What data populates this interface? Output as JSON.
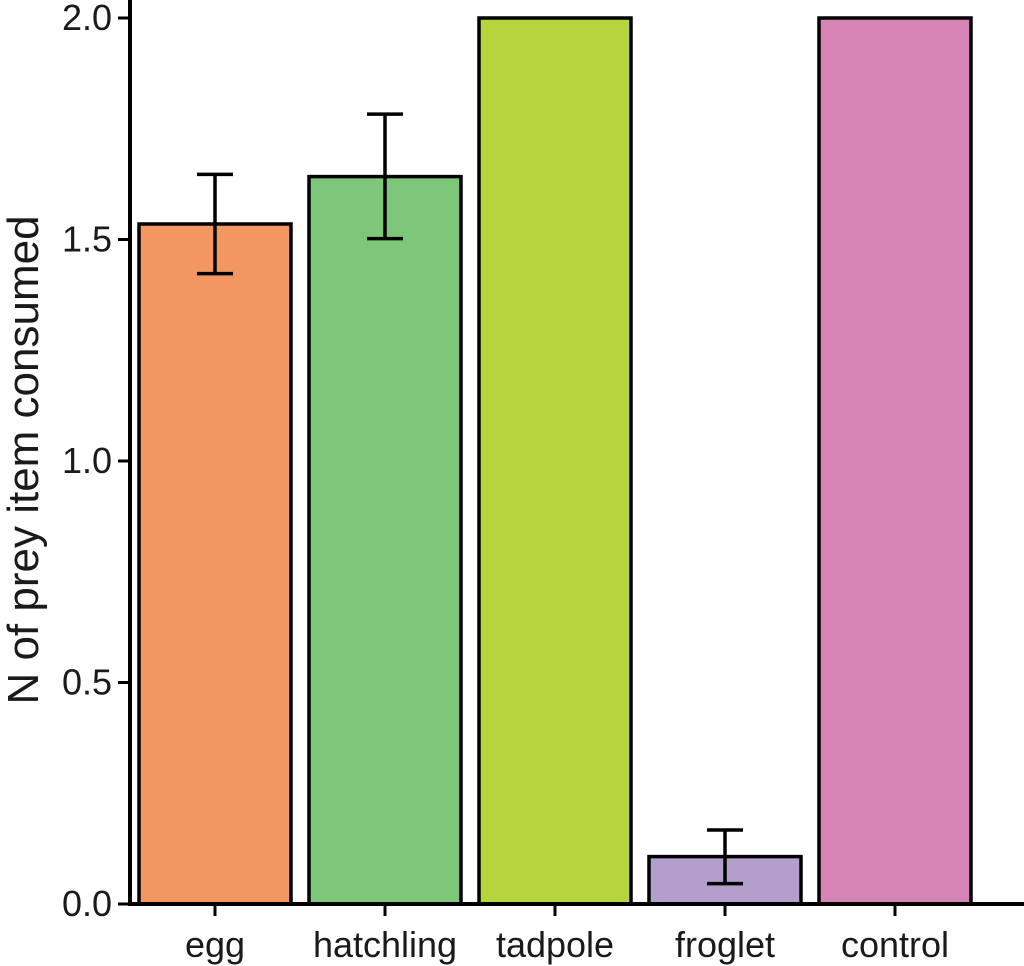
{
  "chart_data": {
    "type": "bar",
    "title": "",
    "xlabel": "",
    "ylabel": "N of prey item consumed",
    "ylim": [
      0,
      2.0
    ],
    "yticks": [
      0.0,
      0.5,
      1.0,
      1.5,
      2.0
    ],
    "ytick_labels": [
      "0.0",
      "0.5",
      "1.0",
      "1.5",
      "2.0"
    ],
    "categories": [
      "egg",
      "hatchling",
      "tadpole",
      "froglet",
      "control"
    ],
    "values": [
      1.535,
      1.642,
      2.0,
      0.107,
      2.0
    ],
    "error_low": [
      1.423,
      1.502,
      2.0,
      0.046,
      2.0
    ],
    "error_high": [
      1.647,
      1.783,
      2.0,
      0.167,
      2.0
    ],
    "colors": [
      "#F4965F",
      "#7DC67A",
      "#B5D43D",
      "#B49ECB",
      "#D684B5"
    ],
    "grid": false,
    "legend": "none"
  }
}
